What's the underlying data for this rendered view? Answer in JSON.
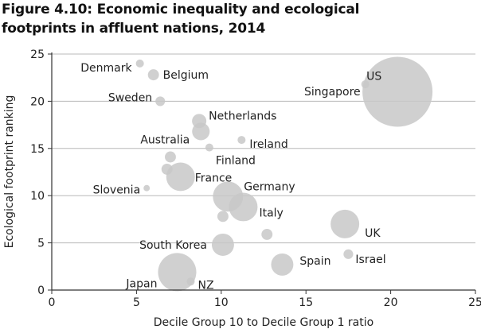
{
  "chart_data": {
    "type": "bubble",
    "title_line1": "Figure 4.10: Economic inequality and ecological",
    "title_line2": "footprints in affluent nations, 2014",
    "xlabel": "Decile Group 10 to Decile Group 1 ratio",
    "ylabel": "Ecological footprint ranking",
    "xlim": [
      0,
      25
    ],
    "ylim": [
      0,
      25
    ],
    "xticks": [
      "0",
      "5",
      "10",
      "15",
      "20",
      "25"
    ],
    "yticks": [
      "0",
      "5",
      "10",
      "15",
      "20",
      "25"
    ],
    "grid": "horizontal",
    "bubble_color": "#c8c8c8",
    "points": [
      {
        "label": "Denmark",
        "x": 5.2,
        "y": 24.0,
        "size": 1.3
      },
      {
        "label": "Belgium",
        "x": 6.0,
        "y": 22.8,
        "size": 2.5
      },
      {
        "label": "Sweden",
        "x": 6.4,
        "y": 20.0,
        "size": 1.9
      },
      {
        "label": "Netherlands",
        "x": 8.7,
        "y": 17.9,
        "size": 4.2
      },
      {
        "label": "Australia",
        "x": 8.8,
        "y": 16.8,
        "size": 6.3
      },
      {
        "label": "Ireland",
        "x": 11.2,
        "y": 15.9,
        "size": 1.3
      },
      {
        "label": "Finland",
        "x": 9.3,
        "y": 15.1,
        "size": 1.3
      },
      {
        "label": "",
        "x": 7.0,
        "y": 14.1,
        "size": 2.5
      },
      {
        "label": "",
        "x": 6.8,
        "y": 12.8,
        "size": 2.5
      },
      {
        "label": "France",
        "x": 7.6,
        "y": 12.0,
        "size": 16.7
      },
      {
        "label": "Slovenia",
        "x": 5.6,
        "y": 10.8,
        "size": 0.8
      },
      {
        "label": "Germany",
        "x": 10.4,
        "y": 9.9,
        "size": 18.6
      },
      {
        "label": "Italy",
        "x": 11.3,
        "y": 8.8,
        "size": 16.7
      },
      {
        "label": "",
        "x": 10.1,
        "y": 7.8,
        "size": 2.5
      },
      {
        "label": "US",
        "x": 20.4,
        "y": 21.0,
        "size": 100
      },
      {
        "label": "Singapore",
        "x": 18.5,
        "y": 21.8,
        "size": 1.3
      },
      {
        "label": "UK",
        "x": 17.3,
        "y": 7.0,
        "size": 16.7
      },
      {
        "label": "",
        "x": 12.7,
        "y": 5.9,
        "size": 2.5
      },
      {
        "label": "South Korea",
        "x": 10.1,
        "y": 4.8,
        "size": 10.1
      },
      {
        "label": "Israel",
        "x": 17.5,
        "y": 3.8,
        "size": 1.9
      },
      {
        "label": "Spain",
        "x": 13.6,
        "y": 2.7,
        "size": 10.1
      },
      {
        "label": "Japan",
        "x": 7.4,
        "y": 1.9,
        "size": 29.8
      },
      {
        "label": "NZ",
        "x": 8.2,
        "y": 0.9,
        "size": 1.3
      }
    ]
  }
}
